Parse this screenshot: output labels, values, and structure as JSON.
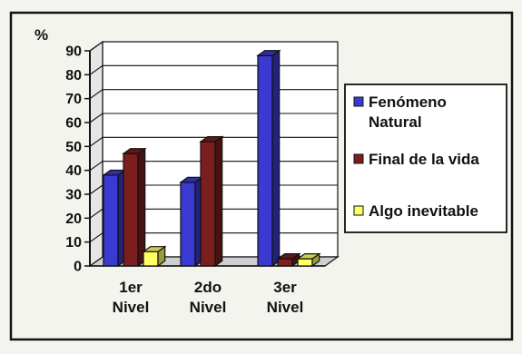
{
  "chart_data": {
    "type": "bar",
    "title": "",
    "xlabel": "",
    "ylabel": "%",
    "ylim": [
      0,
      90
    ],
    "yticks": [
      "0",
      "10",
      "20",
      "30",
      "40",
      "50",
      "60",
      "70",
      "80",
      "90"
    ],
    "categories": [
      [
        "1er",
        "Nivel"
      ],
      [
        "2do",
        "Nivel"
      ],
      [
        "3er",
        "Nivel"
      ]
    ],
    "series": [
      {
        "name_lines": [
          "Fenómeno",
          "Natural"
        ],
        "color": "#3a3ad0",
        "values": [
          38,
          35,
          88
        ]
      },
      {
        "name_lines": [
          "Final de la vida"
        ],
        "color": "#7a1e1e",
        "values": [
          47,
          52,
          3
        ]
      },
      {
        "name_lines": [
          "Algo inevitable"
        ],
        "color": "#ffff66",
        "values": [
          6,
          0,
          3
        ]
      }
    ],
    "grid": true,
    "legend": "right"
  },
  "colors": {
    "frame": "#111111",
    "plot_background": "#ffffff"
  }
}
